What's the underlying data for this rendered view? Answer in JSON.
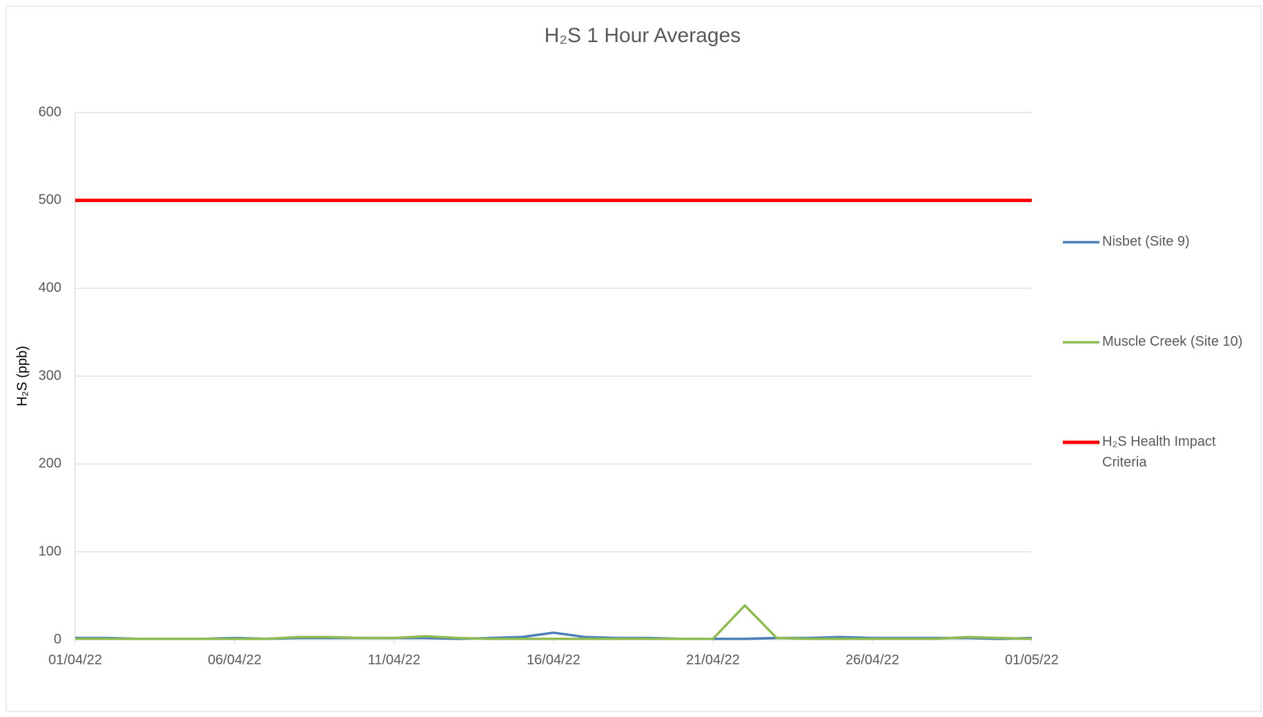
{
  "chart_data": {
    "type": "line",
    "title": "H₂S 1 Hour Averages",
    "y_label": "H₂S (ppb)",
    "x": [
      "01/04/22",
      "02/04/22",
      "03/04/22",
      "04/04/22",
      "05/04/22",
      "06/04/22",
      "07/04/22",
      "08/04/22",
      "09/04/22",
      "10/04/22",
      "11/04/22",
      "12/04/22",
      "13/04/22",
      "14/04/22",
      "15/04/22",
      "16/04/22",
      "17/04/22",
      "18/04/22",
      "19/04/22",
      "20/04/22",
      "21/04/22",
      "22/04/22",
      "23/04/22",
      "24/04/22",
      "25/04/22",
      "26/04/22",
      "27/04/22",
      "28/04/22",
      "29/04/22",
      "30/04/22",
      "01/05/22"
    ],
    "xticks": [
      "01/04/22",
      "06/04/22",
      "11/04/22",
      "16/04/22",
      "21/04/22",
      "26/04/22",
      "01/05/22"
    ],
    "ylim": [
      0,
      600
    ],
    "yticks": [
      0,
      100,
      200,
      300,
      400,
      500,
      600
    ],
    "grid": true,
    "legend": "right",
    "series": [
      {
        "name": "Nisbet (Site 9)",
        "color": "#4a7ebb",
        "values": [
          2,
          2,
          1,
          1,
          1,
          2,
          1,
          2,
          2,
          2,
          2,
          2,
          1,
          2,
          3,
          8,
          3,
          2,
          2,
          1,
          1,
          1,
          2,
          2,
          3,
          2,
          2,
          2,
          2,
          1,
          2
        ]
      },
      {
        "name": "Muscle Creek (Site 10)",
        "color": "#8fbc50",
        "values": [
          1,
          1,
          1,
          1,
          1,
          1,
          1,
          3,
          3,
          2,
          2,
          4,
          2,
          1,
          1,
          1,
          1,
          1,
          1,
          1,
          1,
          39,
          2,
          1,
          1,
          1,
          1,
          1,
          3,
          2,
          1
        ]
      },
      {
        "name": "H₂S Health Impact Criteria",
        "color": "#ff0000",
        "values": [
          500,
          500,
          500,
          500,
          500,
          500,
          500,
          500,
          500,
          500,
          500,
          500,
          500,
          500,
          500,
          500,
          500,
          500,
          500,
          500,
          500,
          500,
          500,
          500,
          500,
          500,
          500,
          500,
          500,
          500,
          500
        ]
      }
    ]
  }
}
